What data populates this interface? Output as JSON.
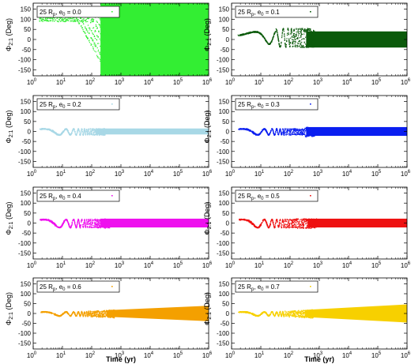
{
  "chart_data": [
    {
      "type": "scatter",
      "legend_base": "25 R",
      "legend_sub1": "p",
      "legend_mid": ", e",
      "legend_sub2": "0",
      "legend_val": " = 0.0",
      "color": "#33ee33",
      "pattern": "e00",
      "ylabel_main": "Φ",
      "ylabel_sub": "2:1",
      "ylabel_unit": " (Deg)",
      "xlabel": "",
      "xlim_exp": [
        0,
        6
      ],
      "ylim": [
        -180,
        180
      ],
      "yticks": [
        -150,
        -100,
        -50,
        0,
        50,
        100,
        150
      ],
      "xtick_base": "10",
      "xtick_exps": [
        "0",
        "1",
        "2",
        "3",
        "4",
        "5",
        "6"
      ],
      "legend_position": "top-left"
    },
    {
      "type": "scatter",
      "legend_base": "25 R",
      "legend_sub1": "p",
      "legend_mid": ", e",
      "legend_sub2": "0",
      "legend_val": " = 0.1",
      "color": "#0b5a0b",
      "pattern": "e01",
      "ylabel_main": "Φ",
      "ylabel_sub": "2:1",
      "ylabel_unit": " (Deg)",
      "xlabel": "",
      "xlim_exp": [
        0,
        6
      ],
      "ylim": [
        -180,
        180
      ],
      "yticks": [
        -150,
        -100,
        -50,
        0,
        50,
        100,
        150
      ],
      "xtick_base": "10",
      "xtick_exps": [
        "0",
        "1",
        "2",
        "3",
        "4",
        "5",
        "6"
      ],
      "legend_position": "top-left"
    },
    {
      "type": "scatter",
      "legend_base": "25 R",
      "legend_sub1": "p",
      "legend_mid": ", e",
      "legend_sub2": "0",
      "legend_val": " = 0.2",
      "color": "#a8d8e6",
      "pattern": "e02",
      "ylabel_main": "Φ",
      "ylabel_sub": "2:1",
      "ylabel_unit": " (Deg)",
      "xlabel": "",
      "xlim_exp": [
        0,
        6
      ],
      "ylim": [
        -180,
        180
      ],
      "yticks": [
        -150,
        -100,
        -50,
        0,
        50,
        100,
        150
      ],
      "xtick_base": "10",
      "xtick_exps": [
        "0",
        "1",
        "2",
        "3",
        "4",
        "5",
        "6"
      ],
      "legend_position": "top-left"
    },
    {
      "type": "scatter",
      "legend_base": "25 R",
      "legend_sub1": "p",
      "legend_mid": ", e",
      "legend_sub2": "0",
      "legend_val": " = 0.3",
      "color": "#0a1ef0",
      "pattern": "e03",
      "ylabel_main": "Φ",
      "ylabel_sub": "2:1",
      "ylabel_unit": " (Deg)",
      "xlabel": "",
      "xlim_exp": [
        0,
        6
      ],
      "ylim": [
        -180,
        180
      ],
      "yticks": [
        -150,
        -100,
        -50,
        0,
        50,
        100,
        150
      ],
      "xtick_base": "10",
      "xtick_exps": [
        "0",
        "1",
        "2",
        "3",
        "4",
        "5",
        "6"
      ],
      "legend_position": "top-left"
    },
    {
      "type": "scatter",
      "legend_base": "25 R",
      "legend_sub1": "p",
      "legend_mid": ", e",
      "legend_sub2": "0",
      "legend_val": " = 0.4",
      "color": "#ee11ee",
      "pattern": "e04",
      "ylabel_main": "Φ",
      "ylabel_sub": "2:1",
      "ylabel_unit": " (Deg)",
      "xlabel": "",
      "xlim_exp": [
        0,
        6
      ],
      "ylim": [
        -180,
        180
      ],
      "yticks": [
        -150,
        -100,
        -50,
        0,
        50,
        100,
        150
      ],
      "xtick_base": "10",
      "xtick_exps": [
        "0",
        "1",
        "2",
        "3",
        "4",
        "5",
        "6"
      ],
      "legend_position": "top-left"
    },
    {
      "type": "scatter",
      "legend_base": "25 R",
      "legend_sub1": "p",
      "legend_mid": ", e",
      "legend_sub2": "0",
      "legend_val": " = 0.5",
      "color": "#ee1111",
      "pattern": "e05",
      "ylabel_main": "Φ",
      "ylabel_sub": "2:1",
      "ylabel_unit": " (Deg)",
      "xlabel": "",
      "xlim_exp": [
        0,
        6
      ],
      "ylim": [
        -180,
        180
      ],
      "yticks": [
        -150,
        -100,
        -50,
        0,
        50,
        100,
        150
      ],
      "xtick_base": "10",
      "xtick_exps": [
        "0",
        "1",
        "2",
        "3",
        "4",
        "5",
        "6"
      ],
      "legend_position": "top-left"
    },
    {
      "type": "scatter",
      "legend_base": "25 R",
      "legend_sub1": "p",
      "legend_mid": ", e",
      "legend_sub2": "0",
      "legend_val": " = 0.6",
      "color": "#f4a000",
      "pattern": "e06",
      "ylabel_main": "Φ",
      "ylabel_sub": "2:1",
      "ylabel_unit": " (Deg)",
      "xlabel": "Time (yr)",
      "xlim_exp": [
        0,
        6
      ],
      "ylim": [
        -180,
        180
      ],
      "yticks": [
        -150,
        -100,
        -50,
        0,
        50,
        100,
        150
      ],
      "xtick_base": "10",
      "xtick_exps": [
        "0",
        "1",
        "2",
        "3",
        "4",
        "5",
        "6"
      ],
      "legend_position": "top-left"
    },
    {
      "type": "scatter",
      "legend_base": "25 R",
      "legend_sub1": "p",
      "legend_mid": ", e",
      "legend_sub2": "0",
      "legend_val": " = 0.7",
      "color": "#f7d000",
      "pattern": "e07",
      "ylabel_main": "Φ",
      "ylabel_sub": "2:1",
      "ylabel_unit": " (Deg)",
      "xlabel": "Time (yr)",
      "xlim_exp": [
        0,
        6
      ],
      "ylim": [
        -180,
        180
      ],
      "yticks": [
        -150,
        -100,
        -50,
        0,
        50,
        100,
        150
      ],
      "xtick_base": "10",
      "xtick_exps": [
        "0",
        "1",
        "2",
        "3",
        "4",
        "5",
        "6"
      ],
      "legend_position": "top-left"
    }
  ]
}
